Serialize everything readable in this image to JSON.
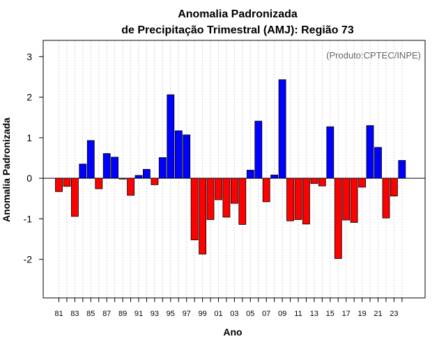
{
  "chart_data": {
    "type": "bar",
    "title_line1": "Anomalia Padronizada",
    "title_line2": "de Precipitação Trimestral (AMJ): Região 73",
    "source_note": "(Produto:CPTEC/INPE)",
    "xlabel": "Ano",
    "ylabel": "Anomalia Padronizada",
    "ylim": [
      -2.95,
      3.4
    ],
    "yticks": [
      -2,
      -1,
      0,
      1,
      2,
      3
    ],
    "x_tick_labels": [
      "81",
      "83",
      "85",
      "87",
      "89",
      "91",
      "93",
      "95",
      "97",
      "99",
      "01",
      "03",
      "05",
      "07",
      "09",
      "11",
      "13",
      "15",
      "17",
      "19",
      "21",
      "23"
    ],
    "categories": [
      "1981",
      "1982",
      "1983",
      "1984",
      "1985",
      "1986",
      "1987",
      "1988",
      "1989",
      "1990",
      "1991",
      "1992",
      "1993",
      "1994",
      "1995",
      "1996",
      "1997",
      "1998",
      "1999",
      "2000",
      "2001",
      "2002",
      "2003",
      "2004",
      "2005",
      "2006",
      "2007",
      "2008",
      "2009",
      "2010",
      "2011",
      "2012",
      "2013",
      "2014",
      "2015",
      "2016",
      "2017",
      "2018",
      "2019",
      "2020",
      "2021",
      "2022",
      "2023",
      "2024"
    ],
    "values": [
      -0.33,
      -0.2,
      -0.94,
      0.35,
      0.93,
      -0.26,
      0.61,
      0.52,
      -0.02,
      -0.42,
      0.07,
      0.22,
      -0.16,
      0.51,
      2.06,
      1.17,
      1.07,
      -1.52,
      -1.87,
      -1.02,
      -0.53,
      -0.96,
      -0.62,
      -1.14,
      0.2,
      1.41,
      -0.58,
      0.08,
      2.43,
      -1.05,
      -1.02,
      -1.13,
      -0.13,
      -0.19,
      1.27,
      -1.98,
      -1.03,
      -1.09,
      -0.22,
      1.3,
      0.76,
      -0.98,
      -0.44,
      0.44
    ],
    "positive_color": "#0000ff",
    "negative_color": "#ff0000",
    "grid": true
  }
}
